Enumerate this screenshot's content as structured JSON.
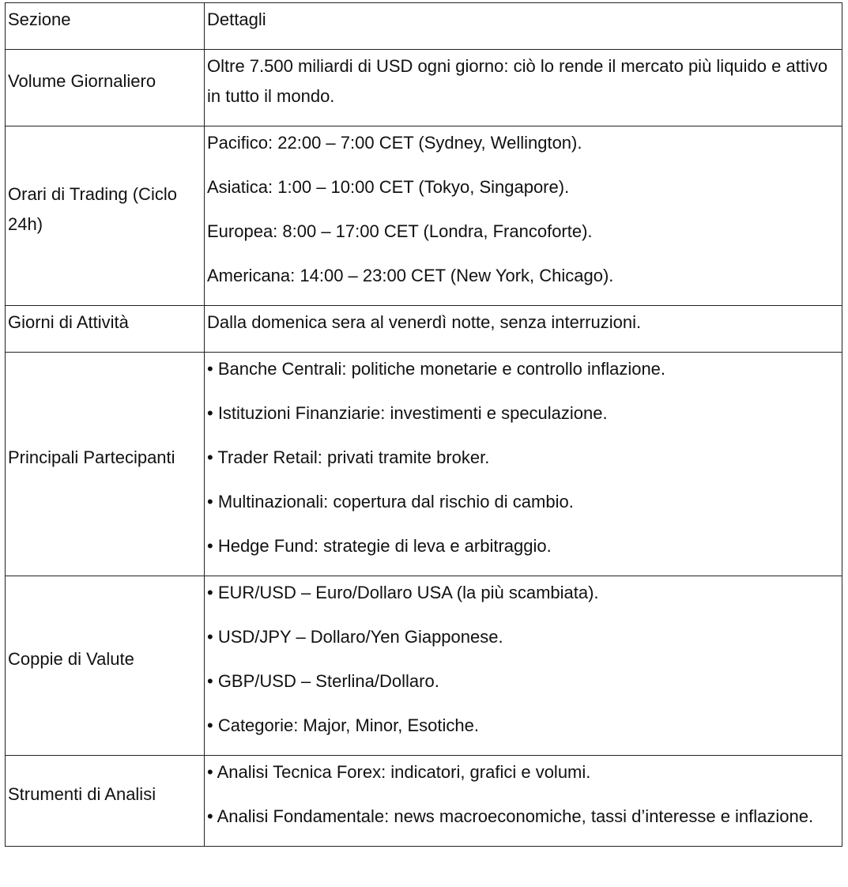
{
  "header": {
    "col1": "Sezione",
    "col2": "Dettagli"
  },
  "rows": [
    {
      "section": "Volume Giornaliero",
      "details": [
        "Oltre 7.500 miliardi di USD ogni giorno: ciò lo rende il mercato più liquido e attivo in tutto il mondo."
      ]
    },
    {
      "section": "Orari di Trading (Ciclo 24h)",
      "details": [
        "Pacifico: 22:00 – 7:00 CET (Sydney, Wellington).",
        "Asiatica: 1:00 – 10:00 CET (Tokyo, Singapore).",
        "Europea: 8:00 – 17:00 CET (Londra, Francoforte).",
        "Americana: 14:00 – 23:00 CET (New York, Chicago)."
      ]
    },
    {
      "section": "Giorni di Attività",
      "details": [
        "Dalla domenica sera al venerdì notte, senza interruzioni."
      ]
    },
    {
      "section": "Principali Partecipanti",
      "details": [
        "• Banche Centrali: politiche monetarie e controllo inflazione.",
        "• Istituzioni Finanziarie: investimenti e speculazione.",
        "• Trader Retail: privati tramite broker.",
        "• Multinazionali: copertura dal rischio di cambio.",
        "• Hedge Fund: strategie di leva e arbitraggio."
      ]
    },
    {
      "section": "Coppie di Valute",
      "details": [
        "• EUR/USD – Euro/Dollaro USA (la più scambiata).",
        "• USD/JPY – Dollaro/Yen Giapponese.",
        "• GBP/USD – Sterlina/Dollaro.",
        "• Categorie: Major, Minor, Esotiche."
      ]
    },
    {
      "section": "Strumenti di Analisi",
      "details": [
        "• Analisi Tecnica Forex: indicatori, grafici e volumi.",
        "• Analisi Fondamentale: news macroeconomiche, tassi d’interesse e inflazione."
      ]
    }
  ]
}
